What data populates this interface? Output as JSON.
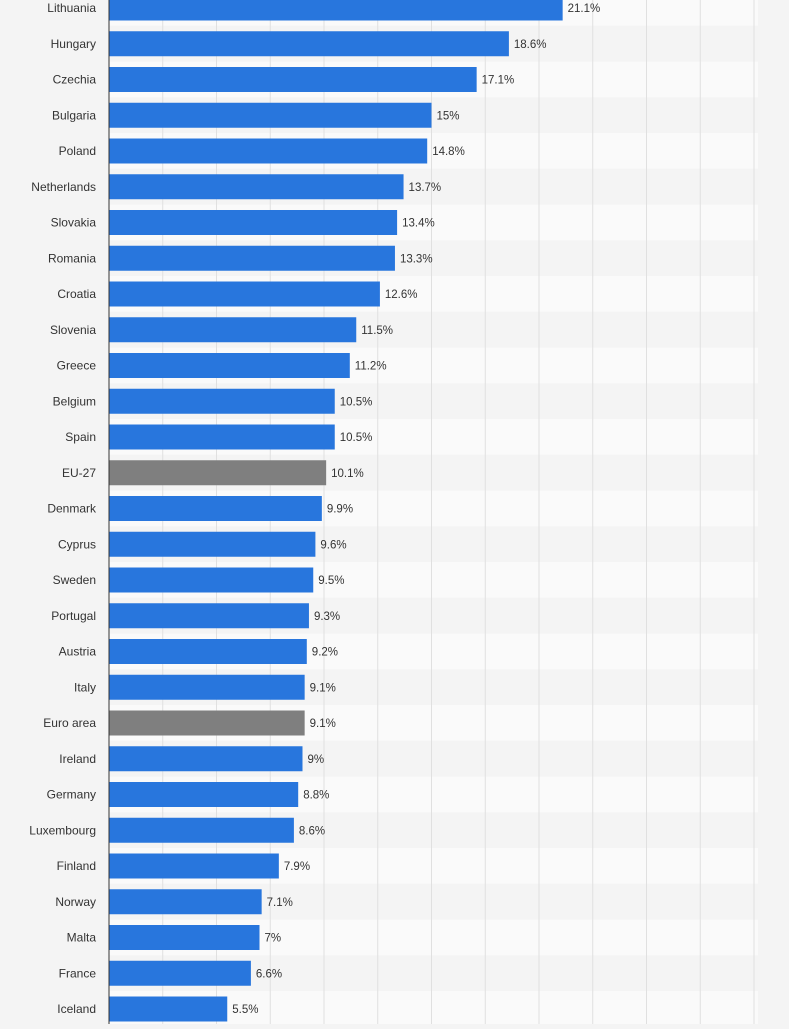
{
  "chart_data": {
    "type": "bar",
    "orientation": "horizontal",
    "categories": [
      "Lithuania",
      "Hungary",
      "Czechia",
      "Bulgaria",
      "Poland",
      "Netherlands",
      "Slovakia",
      "Romania",
      "Croatia",
      "Slovenia",
      "Greece",
      "Belgium",
      "Spain",
      "EU-27",
      "Denmark",
      "Cyprus",
      "Sweden",
      "Portugal",
      "Austria",
      "Italy",
      "Euro area",
      "Ireland",
      "Germany",
      "Luxembourg",
      "Finland",
      "Norway",
      "Malta",
      "France",
      "Iceland"
    ],
    "values": [
      21.1,
      18.6,
      17.1,
      15,
      14.8,
      13.7,
      13.4,
      13.3,
      12.6,
      11.5,
      11.2,
      10.5,
      10.5,
      10.1,
      9.9,
      9.6,
      9.5,
      9.3,
      9.2,
      9.1,
      9.1,
      9,
      8.8,
      8.6,
      7.9,
      7.1,
      7,
      6.6,
      5.5
    ],
    "value_labels": [
      "21.1%",
      "18.6%",
      "17.1%",
      "15%",
      "14.8%",
      "13.7%",
      "13.4%",
      "13.3%",
      "12.6%",
      "11.5%",
      "11.2%",
      "10.5%",
      "10.5%",
      "10.1%",
      "9.9%",
      "9.6%",
      "9.5%",
      "9.3%",
      "9.2%",
      "9.1%",
      "9.1%",
      "9%",
      "8.8%",
      "8.6%",
      "7.9%",
      "7.1%",
      "7%",
      "6.6%",
      "5.5%"
    ],
    "highlighted_categories": [
      "EU-27",
      "Euro area"
    ],
    "xlim": [
      0,
      30
    ],
    "grid": true,
    "colors": {
      "bar": "#2876dd",
      "highlight_bar": "#7f7f7f",
      "grid": "#e0e0e0",
      "axis": "#333333",
      "row_even": "#f4f4f4",
      "row_odd": "#fafafa"
    }
  }
}
